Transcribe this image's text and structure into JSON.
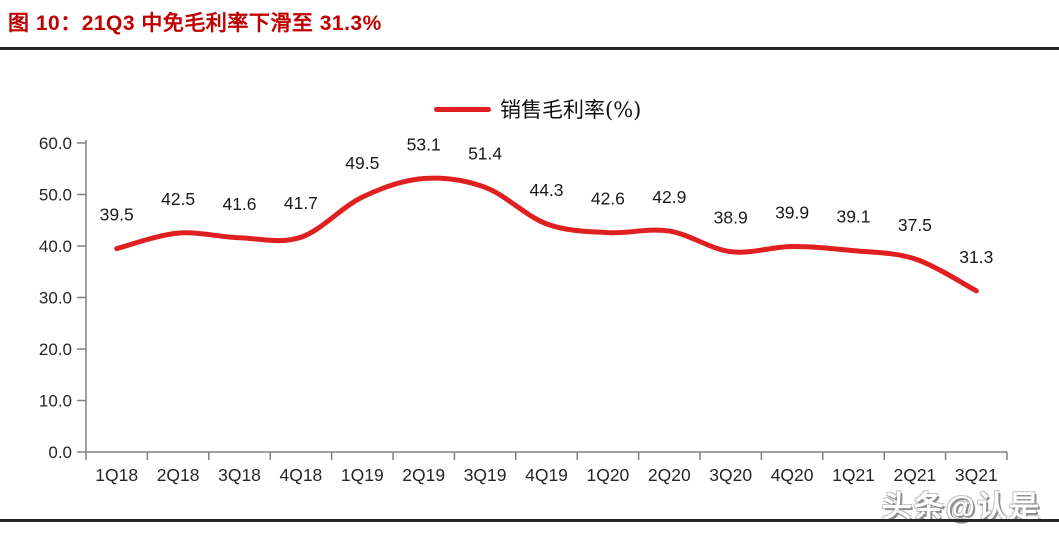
{
  "figure": {
    "title": "图 10：21Q3 中免毛利率下滑至 31.3%",
    "title_color": "#c00000"
  },
  "legend": {
    "label": "销售毛利率(%)",
    "swatch_color": "#e02020"
  },
  "chart_data": {
    "type": "line",
    "title": "图 10：21Q3 中免毛利率下滑至 31.3%",
    "categories": [
      "1Q18",
      "2Q18",
      "3Q18",
      "4Q18",
      "1Q19",
      "2Q19",
      "3Q19",
      "4Q19",
      "1Q20",
      "2Q20",
      "3Q20",
      "4Q20",
      "1Q21",
      "2Q21",
      "3Q21"
    ],
    "series": [
      {
        "name": "销售毛利率(%)",
        "values": [
          39.5,
          42.5,
          41.6,
          41.7,
          49.5,
          53.1,
          51.4,
          44.3,
          42.6,
          42.9,
          38.9,
          39.9,
          39.1,
          37.5,
          31.3
        ]
      }
    ],
    "xlabel": "",
    "ylabel": "",
    "ylim": [
      0,
      60
    ],
    "yticks": [
      0,
      10,
      20,
      30,
      40,
      50,
      60
    ],
    "ytick_labels": [
      "0.0",
      "10.0",
      "20.0",
      "30.0",
      "40.0",
      "50.0",
      "60.0"
    ],
    "grid": false,
    "smooth": true,
    "data_labels": true,
    "legend_position": "top-center",
    "line_color": "#e02020",
    "axis_color": "#808080",
    "tick_label_color": "#262626",
    "data_label_color": "#1a1a1a"
  },
  "watermark": {
    "text": "头条@认是"
  }
}
